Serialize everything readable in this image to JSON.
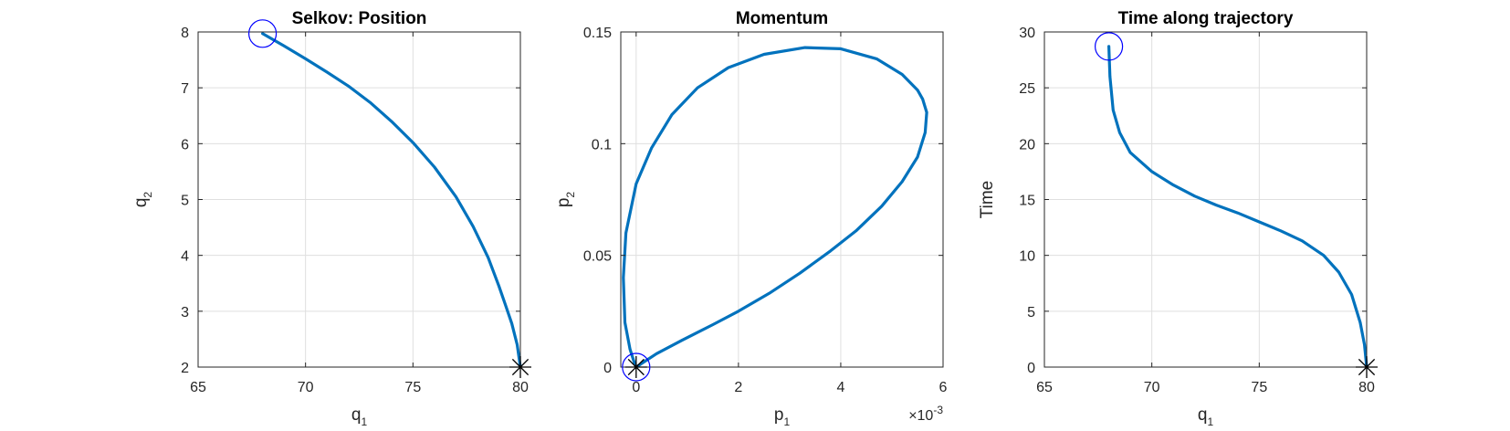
{
  "chart_data": [
    {
      "type": "line",
      "title": "Selkov: Position",
      "xlabel_base": "q",
      "xlabel_sub": "1",
      "ylabel_base": "q",
      "ylabel_sub": "2",
      "xlim": [
        65,
        80
      ],
      "ylim": [
        2,
        8
      ],
      "xticks": [
        65,
        70,
        75,
        80
      ],
      "xtick_labels": [
        "65",
        "70",
        "75",
        "80"
      ],
      "yticks": [
        2,
        3,
        4,
        5,
        6,
        7,
        8
      ],
      "ytick_labels": [
        "2",
        "3",
        "4",
        "5",
        "6",
        "7",
        "8"
      ],
      "grid": true,
      "x": [
        68.0,
        69.0,
        70.0,
        71.0,
        72.0,
        73.0,
        74.0,
        75.0,
        76.0,
        77.0,
        77.8,
        78.5,
        79.0,
        79.3,
        79.6,
        79.85,
        80.0
      ],
      "y": [
        7.97,
        7.75,
        7.52,
        7.28,
        7.03,
        6.74,
        6.4,
        6.02,
        5.58,
        5.05,
        4.52,
        3.96,
        3.45,
        3.12,
        2.78,
        2.4,
        2.0
      ],
      "start_marker": {
        "x": 68.0,
        "y": 7.97,
        "shape": "circle"
      },
      "end_marker": {
        "x": 80.0,
        "y": 2.0,
        "shape": "asterisk"
      }
    },
    {
      "type": "line",
      "title": "Momentum",
      "xlabel_base": "p",
      "xlabel_sub": "1",
      "ylabel_base": "p",
      "ylabel_sub": "2",
      "x_exponent_base": "×10",
      "x_exponent_power": "-3",
      "xlim": [
        -0.3,
        6
      ],
      "ylim": [
        0,
        0.15
      ],
      "xticks": [
        0,
        2,
        4,
        6
      ],
      "xtick_labels": [
        "0",
        "2",
        "4",
        "6"
      ],
      "yticks": [
        0,
        0.05,
        0.1,
        0.15
      ],
      "ytick_labels": [
        "0",
        "0.05",
        "0.1",
        "0.15"
      ],
      "grid": true,
      "x": [
        0.0,
        0.4,
        0.9,
        1.5,
        2.0,
        2.6,
        3.2,
        3.8,
        4.3,
        4.8,
        5.2,
        5.5,
        5.65,
        5.68,
        5.6,
        5.5,
        5.2,
        4.7,
        4.0,
        3.3,
        2.5,
        1.8,
        1.2,
        0.7,
        0.3,
        0.0,
        -0.2,
        -0.25,
        -0.22,
        -0.12,
        -0.05,
        0.0
      ],
      "y": [
        0.0,
        0.006,
        0.012,
        0.019,
        0.025,
        0.033,
        0.042,
        0.052,
        0.061,
        0.072,
        0.083,
        0.094,
        0.105,
        0.114,
        0.12,
        0.124,
        0.131,
        0.138,
        0.1425,
        0.143,
        0.14,
        0.134,
        0.125,
        0.113,
        0.098,
        0.082,
        0.06,
        0.04,
        0.02,
        0.008,
        0.003,
        0.0
      ],
      "start_marker": {
        "x": 0.0,
        "y": 0.0,
        "shape": "circle"
      },
      "end_marker": {
        "x": 0.0,
        "y": 0.0,
        "shape": "asterisk"
      }
    },
    {
      "type": "line",
      "title": "Time along trajectory",
      "xlabel_base": "q",
      "xlabel_sub": "1",
      "ylabel_base": "Time",
      "ylabel_sub": "",
      "xlim": [
        65,
        80
      ],
      "ylim": [
        0,
        30
      ],
      "xticks": [
        65,
        70,
        75,
        80
      ],
      "xtick_labels": [
        "65",
        "70",
        "75",
        "80"
      ],
      "yticks": [
        0,
        5,
        10,
        15,
        20,
        25,
        30
      ],
      "ytick_labels": [
        "0",
        "5",
        "10",
        "15",
        "20",
        "25",
        "30"
      ],
      "grid": true,
      "x": [
        68.0,
        68.05,
        68.2,
        68.5,
        69.0,
        70.0,
        71.0,
        72.0,
        73.0,
        74.0,
        75.0,
        76.0,
        77.0,
        78.0,
        78.7,
        79.3,
        79.7,
        79.9,
        80.0
      ],
      "y": [
        28.7,
        26.0,
        23.0,
        21.0,
        19.2,
        17.5,
        16.3,
        15.3,
        14.5,
        13.8,
        13.0,
        12.2,
        11.3,
        10.0,
        8.5,
        6.5,
        4.0,
        2.0,
        0.0
      ],
      "start_marker": {
        "x": 68.0,
        "y": 28.7,
        "shape": "circle"
      },
      "end_marker": {
        "x": 80.0,
        "y": 0.0,
        "shape": "asterisk"
      }
    }
  ]
}
